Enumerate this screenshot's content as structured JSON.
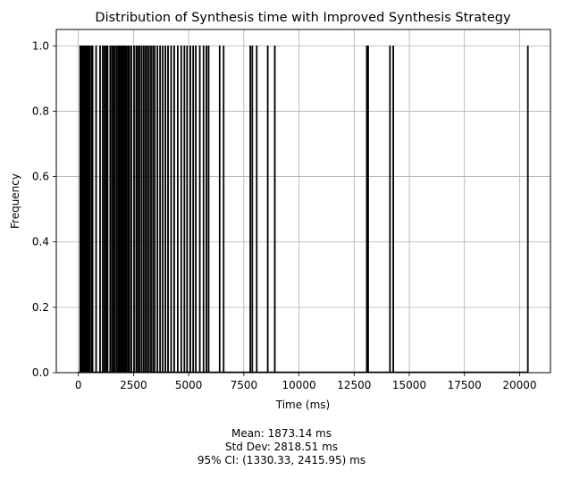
{
  "chart_data": {
    "type": "bar",
    "title": "Distribution of Synthesis time with  Improved Synthesis Strategy",
    "xlabel": "Time (ms)",
    "ylabel": "Frequency",
    "xlim": [
      -1000,
      21400
    ],
    "ylim": [
      0,
      1.05
    ],
    "x_ticks": [
      0,
      2500,
      5000,
      7500,
      10000,
      12500,
      15000,
      17500,
      20000
    ],
    "x_tick_labels": [
      "0",
      "2500",
      "5000",
      "7500",
      "10000",
      "12500",
      "15000",
      "17500",
      "20000"
    ],
    "y_ticks": [
      0.0,
      0.2,
      0.4,
      0.6,
      0.8,
      1.0
    ],
    "y_tick_labels": [
      "0.0",
      "0.2",
      "0.4",
      "0.6",
      "0.8",
      "1.0"
    ],
    "grid": true,
    "bar_color": "#000000",
    "values_note_free": true,
    "bars": [
      {
        "x": 60,
        "y": 1
      },
      {
        "x": 110,
        "y": 1
      },
      {
        "x": 150,
        "y": 1
      },
      {
        "x": 210,
        "y": 1
      },
      {
        "x": 260,
        "y": 1
      },
      {
        "x": 310,
        "y": 1
      },
      {
        "x": 360,
        "y": 1
      },
      {
        "x": 420,
        "y": 1
      },
      {
        "x": 480,
        "y": 1
      },
      {
        "x": 560,
        "y": 1
      },
      {
        "x": 620,
        "y": 1
      },
      {
        "x": 780,
        "y": 1
      },
      {
        "x": 960,
        "y": 1
      },
      {
        "x": 1080,
        "y": 1
      },
      {
        "x": 1160,
        "y": 1
      },
      {
        "x": 1230,
        "y": 1
      },
      {
        "x": 1300,
        "y": 1
      },
      {
        "x": 1420,
        "y": 1
      },
      {
        "x": 1500,
        "y": 1
      },
      {
        "x": 1570,
        "y": 1
      },
      {
        "x": 1640,
        "y": 1
      },
      {
        "x": 1720,
        "y": 1
      },
      {
        "x": 1790,
        "y": 1
      },
      {
        "x": 1840,
        "y": 1
      },
      {
        "x": 1900,
        "y": 1
      },
      {
        "x": 1960,
        "y": 1
      },
      {
        "x": 2020,
        "y": 1
      },
      {
        "x": 2080,
        "y": 1
      },
      {
        "x": 2150,
        "y": 1
      },
      {
        "x": 2220,
        "y": 1
      },
      {
        "x": 2290,
        "y": 1
      },
      {
        "x": 2380,
        "y": 1
      },
      {
        "x": 2500,
        "y": 1
      },
      {
        "x": 2600,
        "y": 1
      },
      {
        "x": 2680,
        "y": 1
      },
      {
        "x": 2760,
        "y": 1
      },
      {
        "x": 2850,
        "y": 1
      },
      {
        "x": 2940,
        "y": 1
      },
      {
        "x": 3020,
        "y": 1
      },
      {
        "x": 3100,
        "y": 1
      },
      {
        "x": 3180,
        "y": 1
      },
      {
        "x": 3270,
        "y": 1
      },
      {
        "x": 3360,
        "y": 1
      },
      {
        "x": 3440,
        "y": 1
      },
      {
        "x": 3560,
        "y": 1
      },
      {
        "x": 3680,
        "y": 1
      },
      {
        "x": 3800,
        "y": 1
      },
      {
        "x": 3920,
        "y": 1
      },
      {
        "x": 4040,
        "y": 1
      },
      {
        "x": 4180,
        "y": 1
      },
      {
        "x": 4320,
        "y": 1
      },
      {
        "x": 4480,
        "y": 1
      },
      {
        "x": 4640,
        "y": 1
      },
      {
        "x": 4780,
        "y": 1
      },
      {
        "x": 4900,
        "y": 1
      },
      {
        "x": 5050,
        "y": 1
      },
      {
        "x": 5180,
        "y": 1
      },
      {
        "x": 5300,
        "y": 1
      },
      {
        "x": 5480,
        "y": 1
      },
      {
        "x": 5650,
        "y": 1
      },
      {
        "x": 5780,
        "y": 1
      },
      {
        "x": 5880,
        "y": 1
      },
      {
        "x": 6380,
        "y": 1
      },
      {
        "x": 6560,
        "y": 1
      },
      {
        "x": 7770,
        "y": 1
      },
      {
        "x": 7860,
        "y": 1
      },
      {
        "x": 8060,
        "y": 1
      },
      {
        "x": 8560,
        "y": 1
      },
      {
        "x": 8880,
        "y": 1
      },
      {
        "x": 13050,
        "y": 1
      },
      {
        "x": 13110,
        "y": 1
      },
      {
        "x": 14100,
        "y": 1
      },
      {
        "x": 14250,
        "y": 1
      },
      {
        "x": 20350,
        "y": 1
      }
    ],
    "bin_width": 40,
    "annotations": [
      "Mean: 1873.14 ms",
      "Std Dev: 2818.51 ms",
      "95% CI: (1330.33, 2415.95) ms"
    ]
  }
}
